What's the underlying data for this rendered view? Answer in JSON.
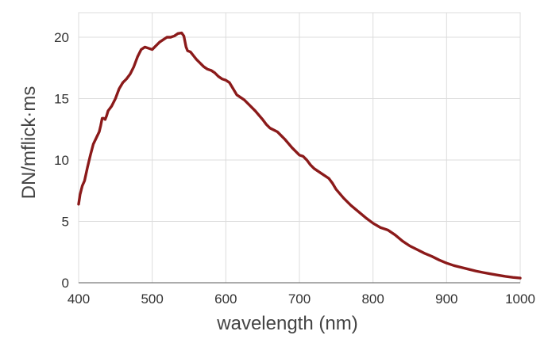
{
  "chart_data": {
    "type": "line",
    "title": "",
    "xlabel": "wavelength (nm)",
    "ylabel": "DN/mflick·ms",
    "xlim": [
      400,
      1000
    ],
    "ylim": [
      0,
      22
    ],
    "grid": true,
    "legend": "none",
    "x_ticks": [
      {
        "value": 400,
        "label": "400"
      },
      {
        "value": 500,
        "label": "500"
      },
      {
        "value": 600,
        "label": "600"
      },
      {
        "value": 700,
        "label": "700"
      },
      {
        "value": 800,
        "label": "800"
      },
      {
        "value": 900,
        "label": "900"
      },
      {
        "value": 1000,
        "label": "1000"
      }
    ],
    "y_ticks": [
      {
        "value": 0,
        "label": "0"
      },
      {
        "value": 5,
        "label": "5"
      },
      {
        "value": 10,
        "label": "10"
      },
      {
        "value": 15,
        "label": "15"
      },
      {
        "value": 20,
        "label": "20"
      }
    ],
    "series": [
      {
        "color": "#8b1a1a",
        "points": [
          [
            400,
            6.4
          ],
          [
            402,
            7.2
          ],
          [
            405,
            7.9
          ],
          [
            408,
            8.3
          ],
          [
            412,
            9.4
          ],
          [
            416,
            10.4
          ],
          [
            420,
            11.3
          ],
          [
            424,
            11.8
          ],
          [
            428,
            12.3
          ],
          [
            430,
            12.8
          ],
          [
            432,
            13.4
          ],
          [
            434,
            13.4
          ],
          [
            436,
            13.3
          ],
          [
            438,
            13.6
          ],
          [
            440,
            14.0
          ],
          [
            445,
            14.4
          ],
          [
            450,
            15.0
          ],
          [
            455,
            15.8
          ],
          [
            460,
            16.3
          ],
          [
            465,
            16.6
          ],
          [
            470,
            17.0
          ],
          [
            475,
            17.6
          ],
          [
            480,
            18.4
          ],
          [
            485,
            19.0
          ],
          [
            490,
            19.2
          ],
          [
            495,
            19.1
          ],
          [
            500,
            19.0
          ],
          [
            505,
            19.3
          ],
          [
            510,
            19.6
          ],
          [
            515,
            19.8
          ],
          [
            520,
            20.0
          ],
          [
            525,
            20.0
          ],
          [
            530,
            20.1
          ],
          [
            535,
            20.3
          ],
          [
            540,
            20.35
          ],
          [
            543,
            20.1
          ],
          [
            546,
            19.2
          ],
          [
            548,
            18.9
          ],
          [
            552,
            18.8
          ],
          [
            556,
            18.5
          ],
          [
            560,
            18.2
          ],
          [
            565,
            17.9
          ],
          [
            570,
            17.6
          ],
          [
            575,
            17.4
          ],
          [
            580,
            17.3
          ],
          [
            585,
            17.1
          ],
          [
            590,
            16.8
          ],
          [
            595,
            16.6
          ],
          [
            600,
            16.5
          ],
          [
            605,
            16.3
          ],
          [
            610,
            15.8
          ],
          [
            615,
            15.3
          ],
          [
            620,
            15.1
          ],
          [
            625,
            14.9
          ],
          [
            630,
            14.6
          ],
          [
            640,
            14.0
          ],
          [
            650,
            13.3
          ],
          [
            655,
            12.9
          ],
          [
            660,
            12.6
          ],
          [
            670,
            12.3
          ],
          [
            675,
            12.0
          ],
          [
            680,
            11.7
          ],
          [
            690,
            11.0
          ],
          [
            700,
            10.4
          ],
          [
            705,
            10.3
          ],
          [
            710,
            10.0
          ],
          [
            715,
            9.6
          ],
          [
            720,
            9.3
          ],
          [
            730,
            8.9
          ],
          [
            740,
            8.5
          ],
          [
            745,
            8.1
          ],
          [
            750,
            7.6
          ],
          [
            760,
            6.9
          ],
          [
            770,
            6.3
          ],
          [
            780,
            5.8
          ],
          [
            790,
            5.3
          ],
          [
            800,
            4.85
          ],
          [
            810,
            4.5
          ],
          [
            820,
            4.3
          ],
          [
            830,
            3.9
          ],
          [
            840,
            3.4
          ],
          [
            850,
            3.0
          ],
          [
            860,
            2.7
          ],
          [
            870,
            2.4
          ],
          [
            880,
            2.15
          ],
          [
            890,
            1.85
          ],
          [
            900,
            1.6
          ],
          [
            910,
            1.4
          ],
          [
            920,
            1.25
          ],
          [
            930,
            1.1
          ],
          [
            940,
            0.95
          ],
          [
            950,
            0.83
          ],
          [
            960,
            0.72
          ],
          [
            970,
            0.62
          ],
          [
            980,
            0.52
          ],
          [
            990,
            0.44
          ],
          [
            1000,
            0.38
          ]
        ]
      }
    ]
  }
}
